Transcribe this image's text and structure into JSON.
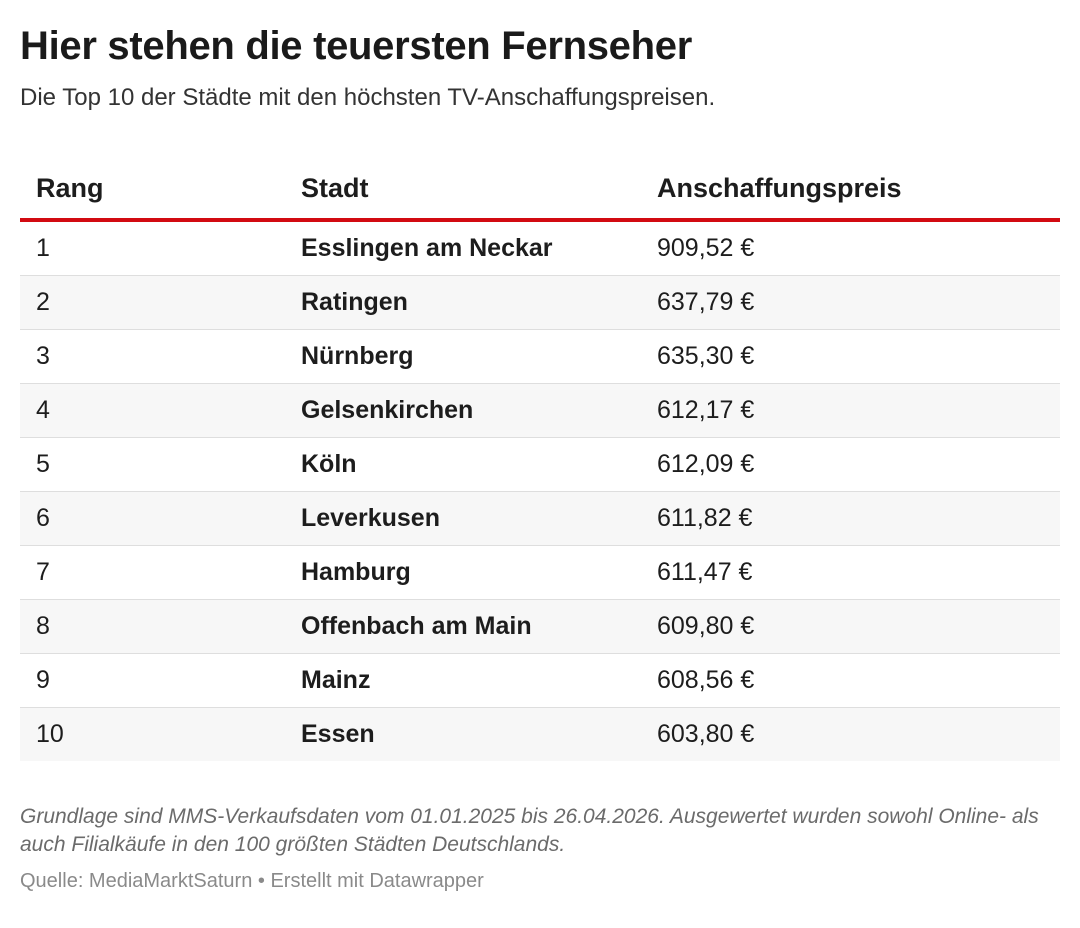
{
  "header": {
    "title": "Hier stehen die teuersten Fernseher",
    "subtitle": "Die Top 10 der Städte mit den höchsten TV-Anschaffungspreisen."
  },
  "chart_data": {
    "type": "table",
    "columns": [
      "Rang",
      "Stadt",
      "Anschaffungspreis"
    ],
    "rows": [
      {
        "rank": "1",
        "city": "Esslingen am Neckar",
        "price": "909,52 €"
      },
      {
        "rank": "2",
        "city": "Ratingen",
        "price": "637,79 €"
      },
      {
        "rank": "3",
        "city": "Nürnberg",
        "price": "635,30 €"
      },
      {
        "rank": "4",
        "city": "Gelsenkirchen",
        "price": "612,17 €"
      },
      {
        "rank": "5",
        "city": "Köln",
        "price": "612,09 €"
      },
      {
        "rank": "6",
        "city": "Leverkusen",
        "price": "611,82 €"
      },
      {
        "rank": "7",
        "city": "Hamburg",
        "price": "611,47 €"
      },
      {
        "rank": "8",
        "city": "Offenbach am Main",
        "price": "609,80 €"
      },
      {
        "rank": "9",
        "city": "Mainz",
        "price": "608,56 €"
      },
      {
        "rank": "10",
        "city": "Essen",
        "price": "603,80 €"
      }
    ],
    "header_rule_color": "#d20a11",
    "stripe_color": "#f7f7f7"
  },
  "footer": {
    "notes": "Grundlage sind MMS-Verkaufsdaten vom 01.01.2025 bis 26.04.2026. Ausgewertet wurden sowohl Online- als auch Filialkäufe in den 100 größten Städten Deutschlands.",
    "source": "Quelle: MediaMarktSaturn • Erstellt mit Datawrapper"
  }
}
